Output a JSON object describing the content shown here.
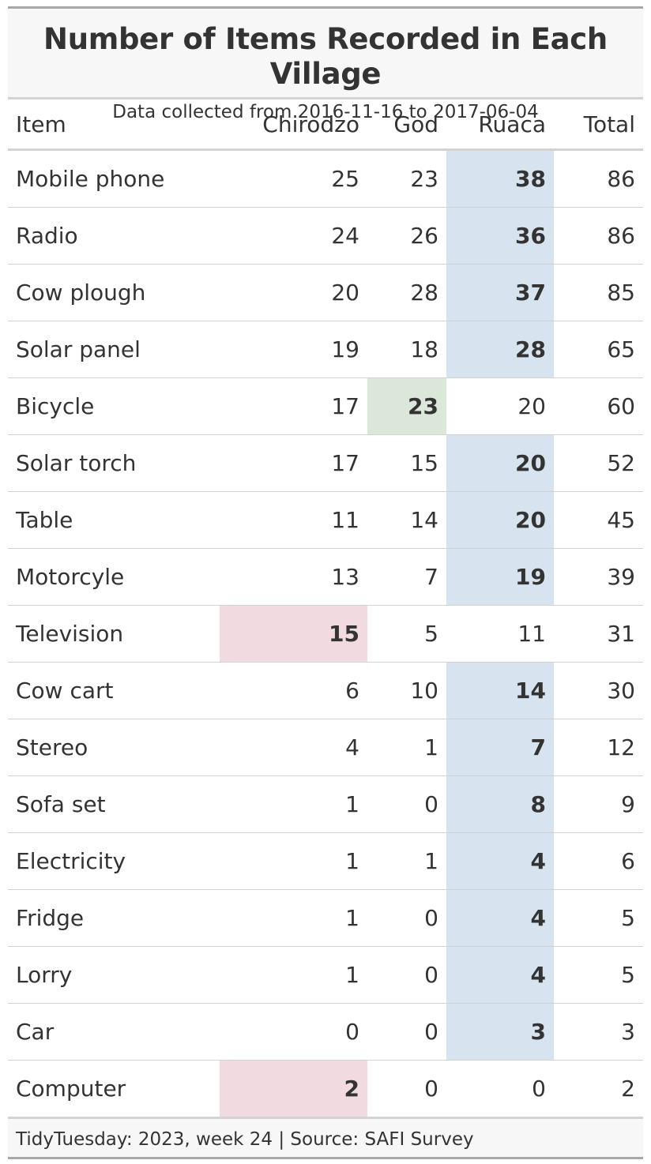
{
  "title": "Number of Items Recorded in Each Village",
  "subtitle": "Data collected from 2016-11-16 to 2017-06-04",
  "columns": [
    "Item",
    "Chirodzo",
    "God",
    "Ruaca",
    "Total"
  ],
  "highlight_colors": {
    "Chirodzo": "#f1dbe1",
    "God": "#dbe7d8",
    "Ruaca": "#d7e4ef"
  },
  "rows": [
    {
      "item": "Mobile phone",
      "Chirodzo": "25",
      "God": "23",
      "Ruaca": "38",
      "Total": "86",
      "max": "Ruaca"
    },
    {
      "item": "Radio",
      "Chirodzo": "24",
      "God": "26",
      "Ruaca": "36",
      "Total": "86",
      "max": "Ruaca"
    },
    {
      "item": "Cow plough",
      "Chirodzo": "20",
      "God": "28",
      "Ruaca": "37",
      "Total": "85",
      "max": "Ruaca"
    },
    {
      "item": "Solar panel",
      "Chirodzo": "19",
      "God": "18",
      "Ruaca": "28",
      "Total": "65",
      "max": "Ruaca"
    },
    {
      "item": "Bicycle",
      "Chirodzo": "17",
      "God": "23",
      "Ruaca": "20",
      "Total": "60",
      "max": "God"
    },
    {
      "item": "Solar torch",
      "Chirodzo": "17",
      "God": "15",
      "Ruaca": "20",
      "Total": "52",
      "max": "Ruaca"
    },
    {
      "item": "Table",
      "Chirodzo": "11",
      "God": "14",
      "Ruaca": "20",
      "Total": "45",
      "max": "Ruaca"
    },
    {
      "item": "Motorcyle",
      "Chirodzo": "13",
      "God": "7",
      "Ruaca": "19",
      "Total": "39",
      "max": "Ruaca"
    },
    {
      "item": "Television",
      "Chirodzo": "15",
      "God": "5",
      "Ruaca": "11",
      "Total": "31",
      "max": "Chirodzo"
    },
    {
      "item": "Cow cart",
      "Chirodzo": "6",
      "God": "10",
      "Ruaca": "14",
      "Total": "30",
      "max": "Ruaca"
    },
    {
      "item": "Stereo",
      "Chirodzo": "4",
      "God": "1",
      "Ruaca": "7",
      "Total": "12",
      "max": "Ruaca"
    },
    {
      "item": "Sofa set",
      "Chirodzo": "1",
      "God": "0",
      "Ruaca": "8",
      "Total": "9",
      "max": "Ruaca"
    },
    {
      "item": "Electricity",
      "Chirodzo": "1",
      "God": "1",
      "Ruaca": "4",
      "Total": "6",
      "max": "Ruaca"
    },
    {
      "item": "Fridge",
      "Chirodzo": "1",
      "God": "0",
      "Ruaca": "4",
      "Total": "5",
      "max": "Ruaca"
    },
    {
      "item": "Lorry",
      "Chirodzo": "1",
      "God": "0",
      "Ruaca": "4",
      "Total": "5",
      "max": "Ruaca"
    },
    {
      "item": "Car",
      "Chirodzo": "0",
      "God": "0",
      "Ruaca": "3",
      "Total": "3",
      "max": "Ruaca"
    },
    {
      "item": "Computer",
      "Chirodzo": "2",
      "God": "0",
      "Ruaca": "0",
      "Total": "2",
      "max": "Chirodzo"
    }
  ],
  "footer": "TidyTuesday: 2023, week 24 | Source: SAFI Survey"
}
